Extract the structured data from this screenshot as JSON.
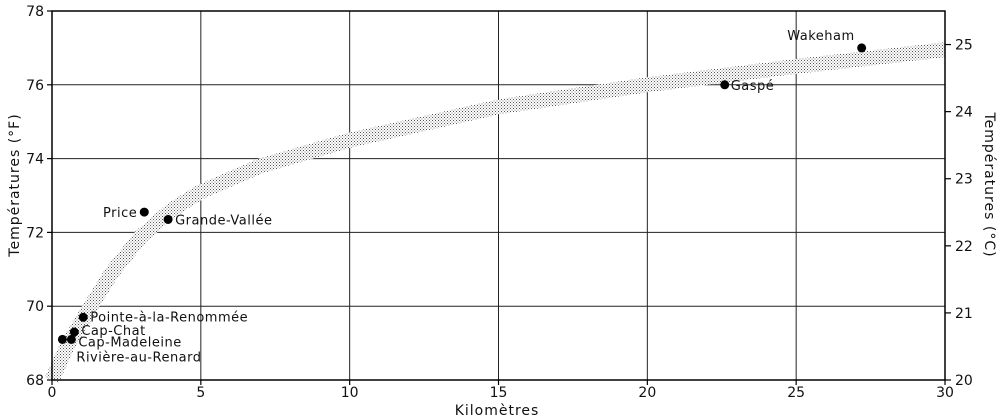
{
  "chart_data": {
    "type": "scatter",
    "xlabel": "Kilomètres",
    "ylabel": "Températures (°F)",
    "y2label": "Températures (°C)",
    "xlim": [
      0,
      30
    ],
    "ylim": [
      68,
      78
    ],
    "y2lim": [
      20,
      25.5
    ],
    "grid": true,
    "x_ticks": [
      "0",
      "5",
      "10",
      "15",
      "20",
      "25",
      "30"
    ],
    "y_ticks": [
      "68",
      "70",
      "72",
      "74",
      "76",
      "78"
    ],
    "y2_ticks": [
      "20",
      "21",
      "22",
      "23",
      "24",
      "25"
    ],
    "points": [
      {
        "label": "Wakeham",
        "x": 27.2,
        "y": 77.0
      },
      {
        "label": "Gaspé",
        "x": 22.6,
        "y": 76.0
      },
      {
        "label": "Price",
        "x": 3.1,
        "y": 72.55
      },
      {
        "label": "Grande-Vallée",
        "x": 3.9,
        "y": 72.35
      },
      {
        "label": "Pointe-à-la-Renommée",
        "x": 1.05,
        "y": 69.7
      },
      {
        "label": "Cap-Chat",
        "x": 0.75,
        "y": 69.3
      },
      {
        "label": "Cap-Madeleine",
        "x": 0.65,
        "y": 69.1
      },
      {
        "label": "Rivière-au-Renard",
        "x": 0.35,
        "y": 69.1
      }
    ],
    "trend_band": {
      "x": [
        0,
        0.5,
        1,
        2,
        3,
        4,
        5,
        7,
        10,
        15,
        20,
        25,
        30
      ],
      "y": [
        68.0,
        68.9,
        69.6,
        70.9,
        71.9,
        72.6,
        73.1,
        73.8,
        74.5,
        75.4,
        76.0,
        76.5,
        76.95
      ]
    }
  }
}
